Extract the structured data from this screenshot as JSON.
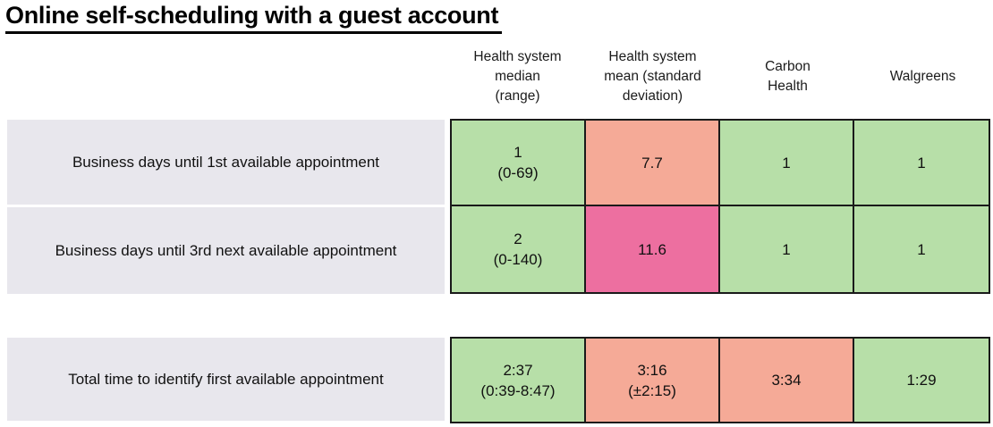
{
  "title": "Online self-scheduling with a guest account",
  "columns": [
    "Health system\nmedian\n(range)",
    "Health system\nmean (standard\ndeviation)",
    "Carbon\nHealth",
    "Walgreens"
  ],
  "rows": [
    {
      "label": "Business days until 1st available appointment",
      "cells": [
        {
          "value": "1",
          "sub": "(0-69)",
          "color": "#b7dfa8"
        },
        {
          "value": "7.7",
          "color": "#f5aa97"
        },
        {
          "value": "1",
          "color": "#b7dfa8"
        },
        {
          "value": "1",
          "color": "#b7dfa8"
        }
      ]
    },
    {
      "label": "Business days until 3rd next available appointment",
      "cells": [
        {
          "value": "2",
          "sub": "(0-140)",
          "color": "#b7dfa8"
        },
        {
          "value": "11.6",
          "color": "#ed6fa0"
        },
        {
          "value": "1",
          "color": "#b7dfa8"
        },
        {
          "value": "1",
          "color": "#b7dfa8"
        }
      ]
    },
    {
      "label": "Total time to identify first available appointment",
      "cells": [
        {
          "value": "2:37",
          "sub": "(0:39-8:47)",
          "color": "#b7dfa8"
        },
        {
          "value": "3:16",
          "sub": "(±2:15)",
          "color": "#f5aa97"
        },
        {
          "value": "3:34",
          "color": "#f5aa97"
        },
        {
          "value": "1:29",
          "color": "#b7dfa8"
        }
      ]
    }
  ],
  "colors": {
    "green": "#b7dfa8",
    "salmon": "#f5aa97",
    "pink": "#ed6fa0",
    "label_bg": "#e8e7ed",
    "border": "#1a1a1a",
    "text": "#1b1b1b"
  },
  "chart_data": {
    "type": "table",
    "title": "Online self-scheduling with a guest account",
    "columns": [
      "Health system median (range)",
      "Health system mean (standard deviation)",
      "Carbon Health",
      "Walgreens"
    ],
    "row_labels": [
      "Business days until 1st available appointment",
      "Business days until 3rd next available appointment",
      "Total time to identify first available appointment"
    ],
    "values": [
      [
        "1 (0-69)",
        "7.7",
        "1",
        "1"
      ],
      [
        "2 (0-140)",
        "11.6",
        "1",
        "1"
      ],
      [
        "2:37 (0:39-8:47)",
        "3:16 (±2:15)",
        "3:34",
        "1:29"
      ]
    ],
    "cell_colors": [
      [
        "green",
        "salmon",
        "green",
        "green"
      ],
      [
        "green",
        "pink",
        "green",
        "green"
      ],
      [
        "green",
        "salmon",
        "salmon",
        "green"
      ]
    ]
  }
}
